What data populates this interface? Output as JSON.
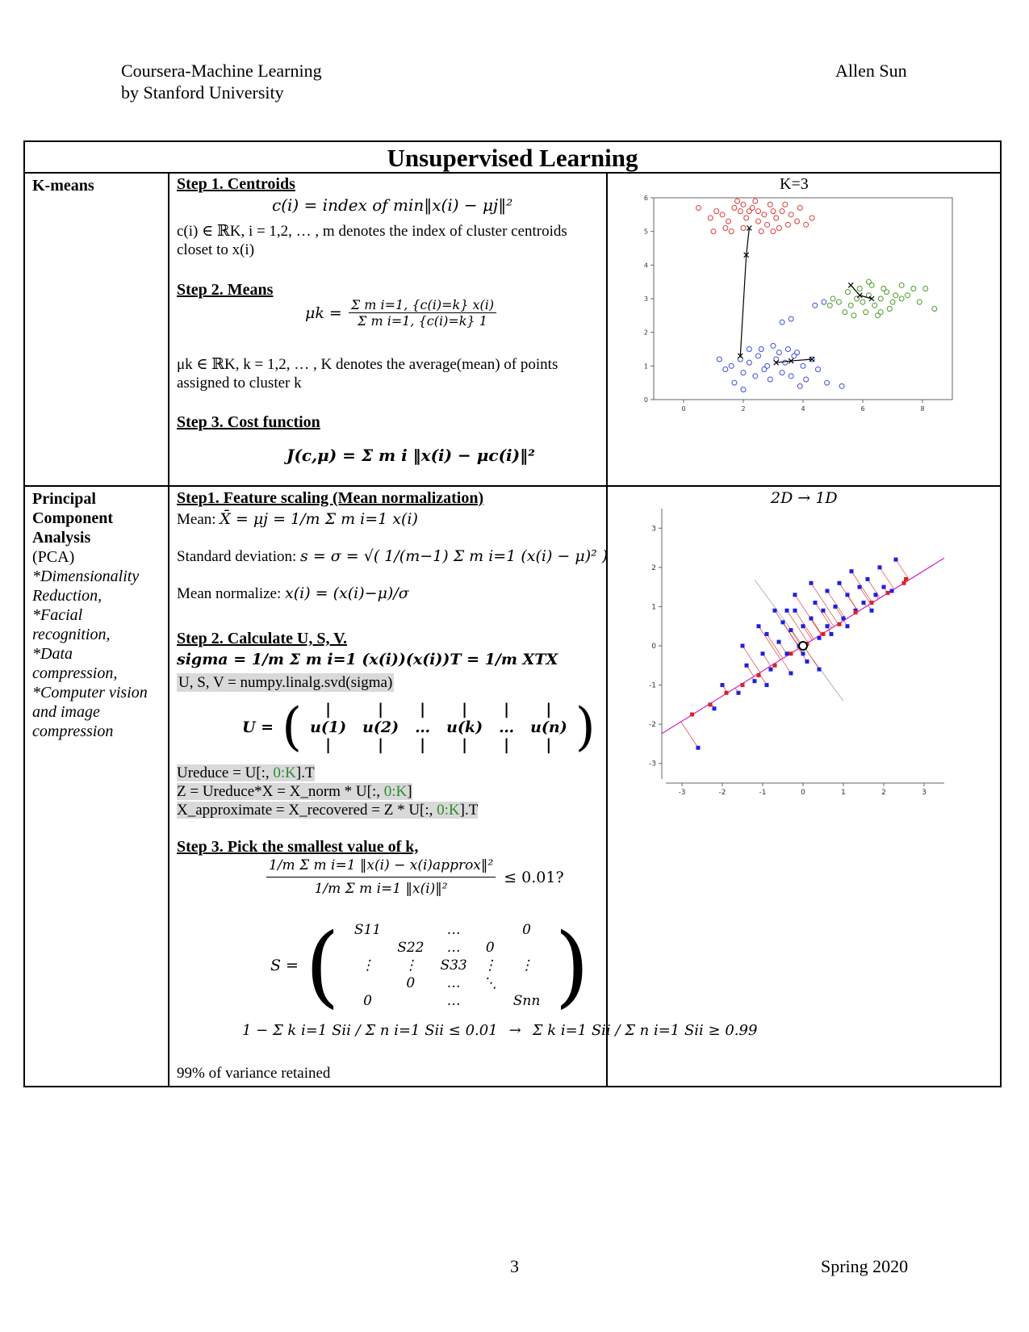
{
  "header": {
    "course_line1": "Coursera-Machine Learning",
    "course_line2": "by Stanford University",
    "author": "Allen Sun"
  },
  "title": "Unsupervised Learning",
  "kmeans": {
    "label": "K-means",
    "plot_title": "K=3",
    "step1_title": "Step 1. Centroids",
    "step1_formula": "c(i) = index of min‖x(i) − μj‖²",
    "step1_desc_a": "c(i) ∈ ℝK, i = 1,2, … , m denotes the index of cluster centroids",
    "step1_desc_b": "closet to x(i)",
    "step2_title": "Step 2. Means",
    "step2_lhs": "μk =",
    "step2_num": "Σ m i=1, {c(i)=k} x(i)",
    "step2_den": "Σ m i=1, {c(i)=k} 1",
    "step2_desc_a": "μk ∈ ℝK, k = 1,2, … , K denotes the average(mean) of points",
    "step2_desc_b": "assigned to cluster k",
    "step3_title": "Step 3. Cost function",
    "step3_formula": "J(c,μ) = Σ m i ‖x(i) − μc(i)‖²"
  },
  "pca": {
    "label_bold": "Principal Component Analysis",
    "label_plain": "(PCA)",
    "label_items": [
      "*Dimensionality Reduction,",
      "*Facial recognition,",
      "*Data compression,",
      "*Computer vision and image compression"
    ],
    "plot_title": "2D → 1D",
    "step1_title": "Step1. Feature scaling (Mean normalization)",
    "mean_label": "Mean:",
    "mean_formula": "X̄ = μj = 1/m Σ m i=1 x(i)",
    "std_label": "Standard deviation:",
    "std_formula": "s = σ = √( 1/(m−1) Σ m i=1 (x(i) − μ)² )",
    "norm_label": "Mean normalize:",
    "norm_formula": "x(i) = (x(i)−μ)/σ",
    "step2_title": "Step 2. Calculate U, S, V.",
    "sigma_formula": "sigma = 1/m Σ m i=1 (x(i))(x(i))T = 1/m XTX",
    "svd_line": "U, S, V = numpy.linalg.svd(sigma)",
    "u_lhs": "U =",
    "u_cols": [
      "u(1)",
      "u(2)",
      "…",
      "u(k)",
      "…",
      "u(n)"
    ],
    "ureduce_prefix": "Ureduce = U[:, ",
    "ureduce_slice": "0:K",
    "ureduce_suffix": "].T",
    "z_prefix": "Z = Ureduce*X = X_norm * U[:, ",
    "z_slice": "0:K",
    "z_suffix": "]",
    "xapprox_prefix": "X_approximate = X_recovered = Z * U[:, ",
    "xapprox_slice": "0:K",
    "xapprox_suffix": "].T",
    "step3_title": "Step 3. Pick the smallest value of k,",
    "ratio_num": "1/m Σ m i=1 ‖x(i) − x(i)approx‖²",
    "ratio_den": "1/m Σ m i=1 ‖x(i)‖²",
    "ratio_cmp": "≤ 0.01?",
    "s_lhs": "S =",
    "s_matrix": [
      [
        "S11",
        "",
        "…",
        "",
        "0"
      ],
      [
        "",
        "S22",
        "…",
        "0",
        ""
      ],
      [
        "⋮",
        "⋮",
        "S33",
        "⋮",
        "⋮"
      ],
      [
        "",
        "0",
        "…",
        "⋱",
        ""
      ],
      [
        "0",
        "",
        "…",
        "",
        "Snn"
      ]
    ],
    "k_left": "1 − Σ k i=1 Sii / Σ n i=1 Sii ≤ 0.01",
    "k_arrow": "→",
    "k_right": "Σ k i=1 Sii / Σ n i=1 Sii ≥ 0.99",
    "retained": "99% of variance retained"
  },
  "footer": {
    "page": "3",
    "term": "Spring 2020"
  },
  "chart_data": [
    {
      "type": "scatter",
      "title": "K=3",
      "xlim": [
        -1,
        9
      ],
      "ylim": [
        0,
        6
      ],
      "xticks": [
        0,
        2,
        4,
        6,
        8
      ],
      "yticks": [
        0,
        1,
        2,
        3,
        4,
        5,
        6
      ],
      "series": [
        {
          "color": "#e03a3a",
          "points": [
            [
              1.9,
              5.6
            ],
            [
              2.1,
              5.4
            ],
            [
              2.3,
              5.7
            ],
            [
              2.5,
              5.3
            ],
            [
              2.7,
              5.5
            ],
            [
              2.9,
              5.8
            ],
            [
              3.1,
              5.4
            ],
            [
              3.3,
              5.6
            ],
            [
              3.5,
              5.2
            ],
            [
              1.5,
              5.3
            ],
            [
              1.7,
              5.7
            ],
            [
              1.3,
              5.5
            ],
            [
              2.0,
              5.1
            ],
            [
              2.4,
              5.9
            ],
            [
              2.8,
              5.2
            ],
            [
              3.0,
              5.6
            ],
            [
              3.2,
              5.1
            ],
            [
              3.6,
              5.5
            ],
            [
              3.8,
              5.3
            ],
            [
              1.1,
              5.6
            ],
            [
              0.9,
              5.4
            ],
            [
              1.6,
              5.0
            ],
            [
              2.2,
              5.6
            ],
            [
              2.6,
              5.0
            ],
            [
              3.4,
              5.8
            ],
            [
              1.8,
              5.9
            ],
            [
              2.5,
              5.6
            ],
            [
              1.4,
              5.1
            ],
            [
              3.9,
              5.7
            ],
            [
              4.1,
              5.2
            ],
            [
              0.5,
              5.7
            ],
            [
              1.0,
              5.0
            ],
            [
              2.0,
              5.8
            ],
            [
              3.0,
              5.0
            ],
            [
              4.3,
              5.4
            ]
          ]
        },
        {
          "color": "#3a4ee0",
          "points": [
            [
              1.6,
              1.0
            ],
            [
              1.9,
              1.2
            ],
            [
              2.2,
              1.1
            ],
            [
              2.5,
              1.3
            ],
            [
              2.8,
              1.0
            ],
            [
              3.1,
              1.2
            ],
            [
              3.4,
              1.1
            ],
            [
              3.7,
              1.3
            ],
            [
              4.0,
              1.0
            ],
            [
              2.0,
              0.8
            ],
            [
              2.4,
              0.7
            ],
            [
              2.9,
              0.6
            ],
            [
              3.3,
              0.8
            ],
            [
              3.6,
              0.7
            ],
            [
              4.1,
              0.6
            ],
            [
              2.6,
              1.5
            ],
            [
              3.0,
              1.6
            ],
            [
              3.5,
              1.5
            ],
            [
              3.8,
              1.4
            ],
            [
              1.4,
              0.9
            ],
            [
              1.2,
              1.2
            ],
            [
              4.3,
              1.2
            ],
            [
              4.5,
              0.9
            ],
            [
              2.2,
              1.5
            ],
            [
              3.2,
              1.4
            ],
            [
              2.7,
              0.9
            ],
            [
              1.7,
              0.5
            ],
            [
              3.9,
              0.4
            ],
            [
              2.0,
              0.3
            ],
            [
              4.8,
              0.5
            ],
            [
              5.3,
              0.4
            ],
            [
              3.3,
              2.3
            ],
            [
              3.6,
              2.4
            ]
          ]
        },
        {
          "color": "#4c9a2a",
          "points": [
            [
              5.6,
              2.8
            ],
            [
              5.8,
              3.0
            ],
            [
              6.0,
              2.9
            ],
            [
              6.2,
              3.1
            ],
            [
              6.4,
              2.8
            ],
            [
              6.6,
              3.0
            ],
            [
              6.8,
              3.2
            ],
            [
              7.0,
              2.9
            ],
            [
              5.5,
              3.2
            ],
            [
              5.9,
              3.3
            ],
            [
              6.3,
              3.4
            ],
            [
              6.7,
              3.3
            ],
            [
              7.1,
              3.1
            ],
            [
              7.3,
              3.0
            ],
            [
              5.4,
              2.6
            ],
            [
              6.1,
              2.6
            ],
            [
              6.5,
              2.5
            ],
            [
              6.9,
              2.7
            ],
            [
              7.5,
              3.1
            ],
            [
              5.2,
              2.9
            ],
            [
              4.9,
              2.8
            ],
            [
              5.7,
              2.5
            ],
            [
              6.2,
              3.5
            ],
            [
              6.6,
              2.6
            ],
            [
              7.7,
              3.3
            ],
            [
              8.1,
              3.3
            ],
            [
              8.4,
              2.7
            ],
            [
              7.3,
              3.4
            ],
            [
              5.0,
              3.0
            ],
            [
              7.9,
              2.9
            ]
          ]
        },
        {
          "color": "#3a4ee0",
          "points": [
            [
              4.4,
              2.8
            ],
            [
              4.7,
              2.9
            ]
          ]
        }
      ],
      "centroid_paths": [
        [
          [
            2.2,
            5.1
          ],
          [
            2.1,
            4.3
          ],
          [
            1.9,
            1.3
          ]
        ],
        [
          [
            3.1,
            1.1
          ],
          [
            3.6,
            1.15
          ],
          [
            4.3,
            1.2
          ]
        ],
        [
          [
            5.6,
            3.4
          ],
          [
            5.9,
            3.1
          ],
          [
            6.3,
            3.0
          ]
        ]
      ]
    },
    {
      "type": "scatter",
      "title": "2D → 1D",
      "xlim": [
        -3.5,
        3.5
      ],
      "ylim": [
        -3.5,
        3.5
      ],
      "xticks": [
        -3,
        -2,
        -1,
        0,
        1,
        2,
        3
      ],
      "yticks": [
        -3,
        -2,
        -1,
        0,
        1,
        2,
        3
      ],
      "series": [
        {
          "color": "#1f1fe0",
          "points": [
            [
              -2.6,
              -2.6
            ],
            [
              -2.2,
              -1.6
            ],
            [
              -2.0,
              -1.0
            ],
            [
              -1.6,
              -1.2
            ],
            [
              -1.4,
              -0.5
            ],
            [
              -1.2,
              -0.9
            ],
            [
              -1.0,
              -0.2
            ],
            [
              -0.9,
              0.3
            ],
            [
              -0.8,
              -0.6
            ],
            [
              -0.6,
              0.1
            ],
            [
              -0.5,
              0.6
            ],
            [
              -0.4,
              -0.2
            ],
            [
              -0.3,
              0.4
            ],
            [
              -0.2,
              0.9
            ],
            [
              -0.1,
              0.0
            ],
            [
              0.0,
              0.5
            ],
            [
              0.1,
              -0.4
            ],
            [
              0.2,
              0.7
            ],
            [
              0.3,
              1.1
            ],
            [
              0.4,
              0.2
            ],
            [
              0.5,
              0.9
            ],
            [
              0.6,
              1.4
            ],
            [
              0.7,
              0.3
            ],
            [
              0.8,
              1.0
            ],
            [
              0.9,
              1.6
            ],
            [
              1.0,
              0.7
            ],
            [
              1.1,
              1.3
            ],
            [
              1.2,
              1.9
            ],
            [
              1.3,
              0.9
            ],
            [
              1.4,
              1.5
            ],
            [
              1.5,
              1.1
            ],
            [
              1.6,
              1.7
            ],
            [
              1.8,
              1.3
            ],
            [
              1.9,
              2.0
            ],
            [
              2.0,
              1.5
            ],
            [
              2.2,
              1.4
            ],
            [
              2.3,
              2.2
            ],
            [
              -0.7,
              0.9
            ],
            [
              -0.2,
              1.3
            ],
            [
              0.4,
              -0.6
            ],
            [
              -1.5,
              0.0
            ],
            [
              -0.9,
              -1.0
            ],
            [
              0.2,
              1.6
            ],
            [
              -0.4,
              0.9
            ],
            [
              0.6,
              0.5
            ],
            [
              1.1,
              0.5
            ],
            [
              -1.1,
              0.5
            ],
            [
              -0.3,
              -0.7
            ],
            [
              1.7,
              0.9
            ],
            [
              0.0,
              -0.2
            ]
          ]
        },
        {
          "color": "#e02020",
          "points": [
            [
              -2.75,
              -1.75
            ],
            [
              -2.3,
              -1.5
            ],
            [
              -1.9,
              -1.2
            ],
            [
              -1.5,
              -1.0
            ],
            [
              -1.1,
              -0.75
            ],
            [
              -0.7,
              -0.5
            ],
            [
              -0.3,
              -0.2
            ],
            [
              0.1,
              0.05
            ],
            [
              0.5,
              0.3
            ],
            [
              0.9,
              0.55
            ],
            [
              1.3,
              0.85
            ],
            [
              1.7,
              1.1
            ],
            [
              2.1,
              1.35
            ],
            [
              2.5,
              1.6
            ],
            [
              2.55,
              1.7
            ]
          ]
        }
      ],
      "mean": [
        0.0,
        0.0
      ],
      "principal_axis": {
        "slope": 0.64,
        "color": "#cc22cc"
      }
    }
  ]
}
